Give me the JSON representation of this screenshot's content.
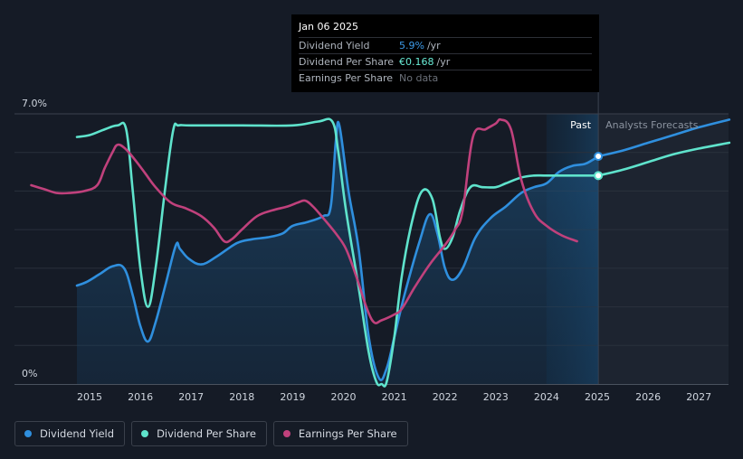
{
  "chart_data": {
    "type": "line",
    "title": "",
    "xlabel": "",
    "ylabel": "",
    "ylim": [
      0,
      7.0
    ],
    "xlim": [
      2014.0,
      2027.6
    ],
    "y_ticks": [
      "7.0%",
      "0%"
    ],
    "x_ticks": [
      "2015",
      "2016",
      "2017",
      "2018",
      "2019",
      "2020",
      "2021",
      "2022",
      "2023",
      "2024",
      "2025",
      "2026",
      "2027"
    ],
    "x_tick_values": [
      2015,
      2016,
      2017,
      2018,
      2019,
      2020,
      2021,
      2022,
      2023,
      2024,
      2025,
      2026,
      2027
    ],
    "grid": true,
    "regions": {
      "past_label": "Past",
      "forecast_label": "Analysts Forecasts",
      "past_start": 2024.0,
      "split": 2025.02
    },
    "series": [
      {
        "name": "Dividend Yield",
        "key": "yield",
        "color": "#2f8fde",
        "filled": true,
        "x": [
          2014.75,
          2014.95,
          2015.2,
          2015.45,
          2015.68,
          2015.85,
          2016.0,
          2016.15,
          2016.3,
          2016.5,
          2016.7,
          2016.78,
          2016.95,
          2017.2,
          2017.5,
          2017.9,
          2018.2,
          2018.5,
          2018.8,
          2019.0,
          2019.3,
          2019.6,
          2019.75,
          2019.85,
          2019.92,
          2020.1,
          2020.3,
          2020.5,
          2020.7,
          2020.85,
          2021.0,
          2021.2,
          2021.5,
          2021.7,
          2021.85,
          2022.0,
          2022.15,
          2022.35,
          2022.6,
          2022.9,
          2023.2,
          2023.5,
          2023.75,
          2024.0,
          2024.25,
          2024.5,
          2024.75,
          2024.9,
          2025.02
        ],
        "y": [
          2.55,
          2.65,
          2.85,
          3.05,
          3.0,
          2.3,
          1.5,
          1.1,
          1.6,
          2.6,
          3.6,
          3.5,
          3.25,
          3.1,
          3.3,
          3.65,
          3.75,
          3.8,
          3.9,
          4.1,
          4.2,
          4.35,
          4.6,
          6.3,
          6.7,
          5.0,
          3.5,
          1.2,
          0.15,
          0.4,
          1.2,
          2.3,
          3.7,
          4.4,
          3.9,
          3.0,
          2.7,
          3.0,
          3.8,
          4.3,
          4.6,
          4.95,
          5.1,
          5.2,
          5.5,
          5.65,
          5.7,
          5.8,
          5.9
        ]
      },
      {
        "name": "Dividend Yield (forecast)",
        "key": "yield_forecast",
        "color": "#2f8fde",
        "filled": false,
        "x": [
          2025.02,
          2025.5,
          2026.0,
          2026.5,
          2027.0,
          2027.6
        ],
        "y": [
          5.9,
          6.05,
          6.25,
          6.45,
          6.65,
          6.85
        ]
      },
      {
        "name": "Dividend Per Share",
        "key": "dps",
        "color": "#5fe3cc",
        "filled": false,
        "x": [
          2014.75,
          2015.0,
          2015.3,
          2015.55,
          2015.72,
          2015.85,
          2016.0,
          2016.15,
          2016.3,
          2016.5,
          2016.65,
          2016.75,
          2017.0,
          2018.0,
          2019.0,
          2019.5,
          2019.78,
          2019.9,
          2020.05,
          2020.3,
          2020.5,
          2020.65,
          2020.75,
          2020.85,
          2021.0,
          2021.15,
          2021.35,
          2021.55,
          2021.75,
          2021.9,
          2022.0,
          2022.15,
          2022.3,
          2022.5,
          2022.75,
          2023.0,
          2023.2,
          2023.5,
          2023.75,
          2024.0,
          2024.5,
          2025.02
        ],
        "y": [
          6.4,
          6.45,
          6.6,
          6.7,
          6.6,
          5.0,
          3.0,
          2.0,
          3.0,
          5.2,
          6.6,
          6.7,
          6.7,
          6.7,
          6.7,
          6.8,
          6.8,
          6.0,
          4.5,
          2.5,
          0.8,
          0.05,
          0.0,
          0.05,
          1.2,
          2.8,
          4.2,
          5.0,
          4.8,
          3.8,
          3.5,
          3.8,
          4.5,
          5.1,
          5.1,
          5.1,
          5.2,
          5.35,
          5.4,
          5.4,
          5.4,
          5.4
        ]
      },
      {
        "name": "Dividend Per Share (forecast)",
        "key": "dps_forecast",
        "color": "#5fe3cc",
        "filled": false,
        "x": [
          2025.02,
          2025.5,
          2026.0,
          2026.5,
          2027.0,
          2027.6
        ],
        "y": [
          5.4,
          5.55,
          5.75,
          5.95,
          6.1,
          6.25
        ]
      },
      {
        "name": "Earnings Per Share",
        "key": "eps",
        "color": "#c0417c",
        "filled": false,
        "x": [
          2013.85,
          2014.1,
          2014.35,
          2014.6,
          2014.9,
          2015.15,
          2015.3,
          2015.45,
          2015.55,
          2015.7,
          2015.9,
          2016.1,
          2016.3,
          2016.6,
          2016.9,
          2017.2,
          2017.45,
          2017.65,
          2017.8,
          2018.0,
          2018.3,
          2018.6,
          2018.9,
          2019.1,
          2019.25,
          2019.4,
          2019.6,
          2019.85,
          2020.05,
          2020.25,
          2020.45,
          2020.6,
          2020.75,
          2021.0,
          2021.15,
          2021.4,
          2021.7,
          2022.0,
          2022.2,
          2022.35,
          2022.55,
          2022.8,
          2023.0,
          2023.1,
          2023.3,
          2023.5,
          2023.75,
          2024.0,
          2024.3,
          2024.6
        ],
        "y": [
          5.15,
          5.05,
          4.95,
          4.95,
          5.0,
          5.15,
          5.6,
          6.0,
          6.2,
          6.1,
          5.8,
          5.45,
          5.1,
          4.7,
          4.55,
          4.35,
          4.05,
          3.7,
          3.75,
          4.0,
          4.35,
          4.5,
          4.6,
          4.7,
          4.75,
          4.6,
          4.3,
          3.9,
          3.5,
          2.8,
          2.0,
          1.6,
          1.65,
          1.8,
          1.95,
          2.5,
          3.1,
          3.6,
          4.0,
          4.5,
          6.4,
          6.6,
          6.75,
          6.85,
          6.6,
          5.3,
          4.45,
          4.1,
          3.85,
          3.7
        ]
      }
    ],
    "markers": [
      {
        "series": "yield",
        "x": 2025.02,
        "y": 5.9
      },
      {
        "series": "dps",
        "x": 2025.02,
        "y": 5.4
      }
    ]
  },
  "tooltip": {
    "date": "Jan 06 2025",
    "rows": [
      {
        "name": "Dividend Yield",
        "value": "5.9%",
        "unit": "/yr"
      },
      {
        "name": "Dividend Per Share",
        "value": "€0.168",
        "unit": "/yr"
      },
      {
        "name": "Earnings Per Share",
        "value": "No data"
      }
    ]
  },
  "legend": {
    "items": [
      {
        "label": "Dividend Yield",
        "color": "#2f8fde"
      },
      {
        "label": "Dividend Per Share",
        "color": "#5fe3cc"
      },
      {
        "label": "Earnings Per Share",
        "color": "#c0417c"
      }
    ]
  }
}
